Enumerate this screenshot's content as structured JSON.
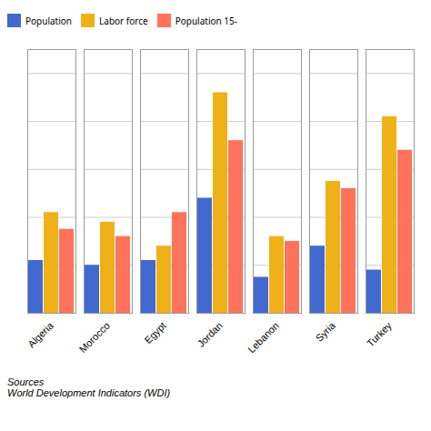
{
  "chart_data": {
    "type": "bar",
    "categories": [
      "Algeria",
      "Morocco",
      "Egypt",
      "Jordan",
      "Lebanon",
      "Syria",
      "Turkey"
    ],
    "series": [
      {
        "name": "Population",
        "values": [
          2.2,
          2.0,
          2.2,
          4.8,
          1.5,
          2.8,
          1.8
        ]
      },
      {
        "name": "Labor force",
        "values": [
          4.2,
          3.8,
          2.8,
          9.2,
          3.2,
          5.5,
          8.2
        ]
      },
      {
        "name": "Population 15-",
        "values": [
          3.5,
          3.2,
          4.2,
          7.2,
          3.0,
          5.2,
          6.8
        ]
      }
    ],
    "ylim": [
      0,
      11
    ],
    "yticks": [
      0,
      2,
      4,
      6,
      8,
      10
    ],
    "grid": true,
    "tick_labels": "x",
    "legend": "top",
    "annotations": [
      "Sources\nWorld Development Indicators (WDI)"
    ]
  }
}
